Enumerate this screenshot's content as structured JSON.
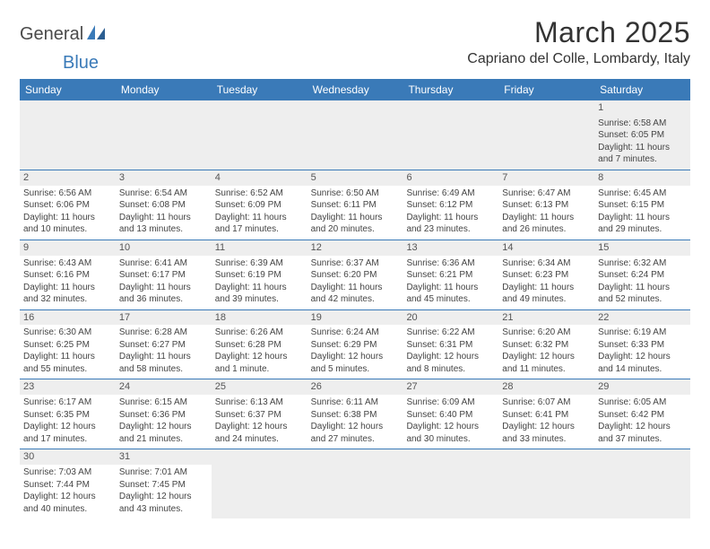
{
  "logo": {
    "part1": "General",
    "part2": "Blue"
  },
  "header": {
    "month_title": "March 2025",
    "location": "Capriano del Colle, Lombardy, Italy"
  },
  "colors": {
    "header_bg": "#3a7ab8",
    "stripe_bg": "#eeeeee",
    "text": "#333333"
  },
  "dayheads": [
    "Sunday",
    "Monday",
    "Tuesday",
    "Wednesday",
    "Thursday",
    "Friday",
    "Saturday"
  ],
  "weeks": [
    [
      null,
      null,
      null,
      null,
      null,
      null,
      {
        "n": "1",
        "sunrise": "Sunrise: 6:58 AM",
        "sunset": "Sunset: 6:05 PM",
        "daylight": "Daylight: 11 hours and 7 minutes."
      }
    ],
    [
      {
        "n": "2",
        "sunrise": "Sunrise: 6:56 AM",
        "sunset": "Sunset: 6:06 PM",
        "daylight": "Daylight: 11 hours and 10 minutes."
      },
      {
        "n": "3",
        "sunrise": "Sunrise: 6:54 AM",
        "sunset": "Sunset: 6:08 PM",
        "daylight": "Daylight: 11 hours and 13 minutes."
      },
      {
        "n": "4",
        "sunrise": "Sunrise: 6:52 AM",
        "sunset": "Sunset: 6:09 PM",
        "daylight": "Daylight: 11 hours and 17 minutes."
      },
      {
        "n": "5",
        "sunrise": "Sunrise: 6:50 AM",
        "sunset": "Sunset: 6:11 PM",
        "daylight": "Daylight: 11 hours and 20 minutes."
      },
      {
        "n": "6",
        "sunrise": "Sunrise: 6:49 AM",
        "sunset": "Sunset: 6:12 PM",
        "daylight": "Daylight: 11 hours and 23 minutes."
      },
      {
        "n": "7",
        "sunrise": "Sunrise: 6:47 AM",
        "sunset": "Sunset: 6:13 PM",
        "daylight": "Daylight: 11 hours and 26 minutes."
      },
      {
        "n": "8",
        "sunrise": "Sunrise: 6:45 AM",
        "sunset": "Sunset: 6:15 PM",
        "daylight": "Daylight: 11 hours and 29 minutes."
      }
    ],
    [
      {
        "n": "9",
        "sunrise": "Sunrise: 6:43 AM",
        "sunset": "Sunset: 6:16 PM",
        "daylight": "Daylight: 11 hours and 32 minutes."
      },
      {
        "n": "10",
        "sunrise": "Sunrise: 6:41 AM",
        "sunset": "Sunset: 6:17 PM",
        "daylight": "Daylight: 11 hours and 36 minutes."
      },
      {
        "n": "11",
        "sunrise": "Sunrise: 6:39 AM",
        "sunset": "Sunset: 6:19 PM",
        "daylight": "Daylight: 11 hours and 39 minutes."
      },
      {
        "n": "12",
        "sunrise": "Sunrise: 6:37 AM",
        "sunset": "Sunset: 6:20 PM",
        "daylight": "Daylight: 11 hours and 42 minutes."
      },
      {
        "n": "13",
        "sunrise": "Sunrise: 6:36 AM",
        "sunset": "Sunset: 6:21 PM",
        "daylight": "Daylight: 11 hours and 45 minutes."
      },
      {
        "n": "14",
        "sunrise": "Sunrise: 6:34 AM",
        "sunset": "Sunset: 6:23 PM",
        "daylight": "Daylight: 11 hours and 49 minutes."
      },
      {
        "n": "15",
        "sunrise": "Sunrise: 6:32 AM",
        "sunset": "Sunset: 6:24 PM",
        "daylight": "Daylight: 11 hours and 52 minutes."
      }
    ],
    [
      {
        "n": "16",
        "sunrise": "Sunrise: 6:30 AM",
        "sunset": "Sunset: 6:25 PM",
        "daylight": "Daylight: 11 hours and 55 minutes."
      },
      {
        "n": "17",
        "sunrise": "Sunrise: 6:28 AM",
        "sunset": "Sunset: 6:27 PM",
        "daylight": "Daylight: 11 hours and 58 minutes."
      },
      {
        "n": "18",
        "sunrise": "Sunrise: 6:26 AM",
        "sunset": "Sunset: 6:28 PM",
        "daylight": "Daylight: 12 hours and 1 minute."
      },
      {
        "n": "19",
        "sunrise": "Sunrise: 6:24 AM",
        "sunset": "Sunset: 6:29 PM",
        "daylight": "Daylight: 12 hours and 5 minutes."
      },
      {
        "n": "20",
        "sunrise": "Sunrise: 6:22 AM",
        "sunset": "Sunset: 6:31 PM",
        "daylight": "Daylight: 12 hours and 8 minutes."
      },
      {
        "n": "21",
        "sunrise": "Sunrise: 6:20 AM",
        "sunset": "Sunset: 6:32 PM",
        "daylight": "Daylight: 12 hours and 11 minutes."
      },
      {
        "n": "22",
        "sunrise": "Sunrise: 6:19 AM",
        "sunset": "Sunset: 6:33 PM",
        "daylight": "Daylight: 12 hours and 14 minutes."
      }
    ],
    [
      {
        "n": "23",
        "sunrise": "Sunrise: 6:17 AM",
        "sunset": "Sunset: 6:35 PM",
        "daylight": "Daylight: 12 hours and 17 minutes."
      },
      {
        "n": "24",
        "sunrise": "Sunrise: 6:15 AM",
        "sunset": "Sunset: 6:36 PM",
        "daylight": "Daylight: 12 hours and 21 minutes."
      },
      {
        "n": "25",
        "sunrise": "Sunrise: 6:13 AM",
        "sunset": "Sunset: 6:37 PM",
        "daylight": "Daylight: 12 hours and 24 minutes."
      },
      {
        "n": "26",
        "sunrise": "Sunrise: 6:11 AM",
        "sunset": "Sunset: 6:38 PM",
        "daylight": "Daylight: 12 hours and 27 minutes."
      },
      {
        "n": "27",
        "sunrise": "Sunrise: 6:09 AM",
        "sunset": "Sunset: 6:40 PM",
        "daylight": "Daylight: 12 hours and 30 minutes."
      },
      {
        "n": "28",
        "sunrise": "Sunrise: 6:07 AM",
        "sunset": "Sunset: 6:41 PM",
        "daylight": "Daylight: 12 hours and 33 minutes."
      },
      {
        "n": "29",
        "sunrise": "Sunrise: 6:05 AM",
        "sunset": "Sunset: 6:42 PM",
        "daylight": "Daylight: 12 hours and 37 minutes."
      }
    ],
    [
      {
        "n": "30",
        "sunrise": "Sunrise: 7:03 AM",
        "sunset": "Sunset: 7:44 PM",
        "daylight": "Daylight: 12 hours and 40 minutes."
      },
      {
        "n": "31",
        "sunrise": "Sunrise: 7:01 AM",
        "sunset": "Sunset: 7:45 PM",
        "daylight": "Daylight: 12 hours and 43 minutes."
      },
      null,
      null,
      null,
      null,
      null
    ]
  ]
}
